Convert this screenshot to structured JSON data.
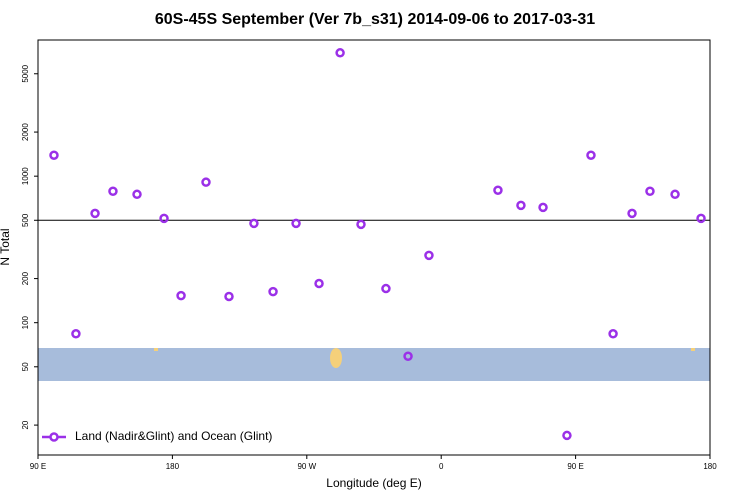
{
  "chart_data": {
    "type": "scatter",
    "title": "60S-45S September (Ver 7b_s31)   2014-09-06 to 2017-03-31",
    "xlabel": "Longitude (deg E)",
    "ylabel": "N Total",
    "log_y": true,
    "xlim": [
      90,
      540
    ],
    "xticks": [
      {
        "value": 90,
        "label": "90 E"
      },
      180,
      {
        "value": 270,
        "label": "90 W"
      },
      {
        "value": 360,
        "label": "0"
      },
      {
        "value": 450,
        "label": "90 E"
      },
      {
        "value": 540,
        "label": "180"
      }
    ],
    "ylim": [
      12.5,
      8500
    ],
    "yticks": [
      20,
      50,
      100,
      200,
      500,
      1000,
      2000,
      5000
    ],
    "reference_line": 500,
    "legend": "bottom-left",
    "series": [
      {
        "name": "Land (Nadir&Glint) and Ocean (Glint)",
        "color": "#9b30e8",
        "x": [
          100.7,
          115.4,
          128.2,
          140.2,
          156.3,
          174.4,
          185.8,
          202.5,
          217.9,
          234.6,
          247.4,
          262.8,
          278.2,
          292.3,
          306.3,
          323.0,
          337.8,
          351.8,
          398.0,
          413.4,
          428.2,
          444.2,
          460.3,
          475.1,
          487.8,
          499.8,
          516.6,
          534.0
        ],
        "values": [
          1390,
          84,
          557,
          789,
          752,
          515,
          153,
          910,
          151,
          476,
          163,
          476,
          185,
          6950,
          469,
          171,
          59,
          288,
          802,
          632,
          612,
          17,
          1390,
          84,
          557,
          789,
          752,
          515
        ]
      }
    ]
  }
}
